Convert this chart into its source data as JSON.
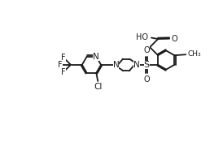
{
  "bg_color": "#ffffff",
  "line_color": "#1a1a1a",
  "lw": 1.3,
  "fs": 7.0,
  "xlim": [
    0,
    10
  ],
  "ylim": [
    0,
    7
  ],
  "bl": 0.72
}
